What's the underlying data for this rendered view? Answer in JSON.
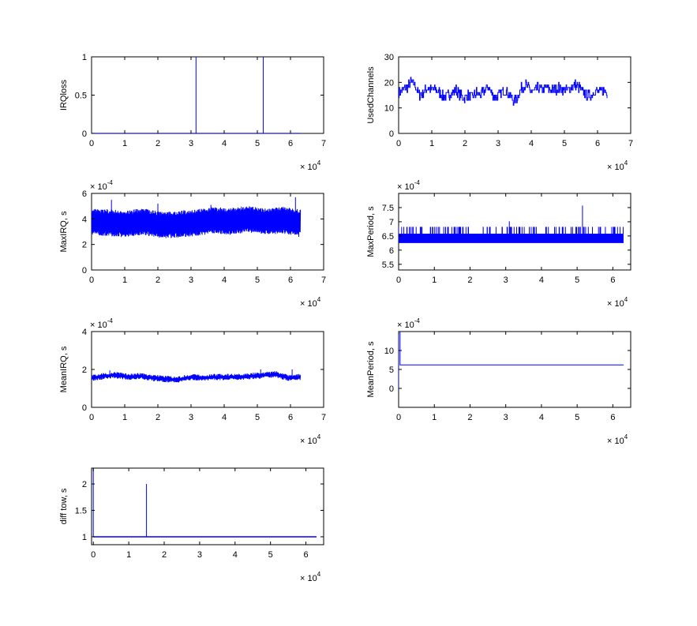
{
  "figure": {
    "background": "#ffffff",
    "axis_color": "#000000",
    "line_color": "#0000ff",
    "exponent_base": "× 10"
  },
  "chart_data": [
    {
      "id": "irqloss",
      "type": "line",
      "ylabel": "IRQloss",
      "xlim": [
        0,
        70000
      ],
      "ylim": [
        0,
        1
      ],
      "xticks": [
        0,
        1,
        2,
        3,
        4,
        5,
        6,
        7
      ],
      "yticks": [
        "0",
        "0.5",
        "1"
      ],
      "x_exponent": "4",
      "y_exponent": "",
      "baseline": 0,
      "events": [
        {
          "x": 31500,
          "y": 1
        },
        {
          "x": 51800,
          "y": 1
        }
      ],
      "x_end": 63000
    },
    {
      "id": "usedchannels",
      "type": "line",
      "ylabel": "UsedChannels",
      "xlim": [
        0,
        70000
      ],
      "ylim": [
        0,
        30
      ],
      "xticks": [
        0,
        1,
        2,
        3,
        4,
        5,
        6,
        7
      ],
      "yticks": [
        "0",
        "10",
        "20",
        "30"
      ],
      "x_exponent": "4",
      "y_exponent": "",
      "x_end": 63000,
      "values": [
        16,
        17,
        18,
        20,
        19,
        15,
        16,
        18,
        17,
        17,
        16,
        14,
        15,
        16,
        17,
        15,
        14,
        15,
        14,
        16,
        15,
        17,
        18,
        15,
        14,
        16,
        17,
        15,
        13,
        14,
        18,
        19,
        17,
        16,
        18,
        17,
        18,
        17,
        17,
        18,
        17,
        17,
        18,
        19,
        18,
        16,
        15,
        15,
        17,
        16,
        17,
        16
      ]
    },
    {
      "id": "maxirq",
      "type": "line",
      "ylabel": "MaxIRQ, s",
      "xlim": [
        0,
        70000
      ],
      "ylim": [
        0,
        6
      ],
      "xticks": [
        0,
        1,
        2,
        3,
        4,
        5,
        6,
        7
      ],
      "yticks": [
        "0",
        "2",
        "4",
        "6"
      ],
      "x_exponent": "4",
      "y_exponent": "-4",
      "x_end": 63000,
      "band": {
        "low": 3.0,
        "high": 4.4
      },
      "band_curve": [
        0.1,
        0.0,
        -0.1,
        0.1,
        -0.2,
        -0.1,
        0.0,
        0.2,
        0.1,
        0.3,
        0.1,
        0.2,
        0.0
      ],
      "spikes": [
        {
          "x": 6000,
          "y": 5.5
        },
        {
          "x": 20000,
          "y": 5.2
        },
        {
          "x": 36000,
          "y": 5.1
        },
        {
          "x": 61500,
          "y": 5.7
        },
        {
          "x": 62500,
          "y": 2.6
        },
        {
          "x": 24000,
          "y": 2.5
        }
      ]
    },
    {
      "id": "maxperiod",
      "type": "line",
      "ylabel": "MaxPeriod, s",
      "xlim": [
        0,
        65000
      ],
      "ylim": [
        5.3,
        8.0
      ],
      "xticks": [
        0,
        1,
        2,
        3,
        4,
        5,
        6
      ],
      "yticks": [
        "5.5",
        "6",
        "6.5",
        "7",
        "7.5"
      ],
      "x_exponent": "4",
      "y_exponent": "-4",
      "x_end": 63000,
      "band": {
        "low": 6.25,
        "high": 6.58
      },
      "spike_level": 6.82,
      "spikes": [
        {
          "x": 31000,
          "y": 7.02
        },
        {
          "x": 51500,
          "y": 7.57
        }
      ]
    },
    {
      "id": "meanirq",
      "type": "line",
      "ylabel": "MeanIRQ, s",
      "xlim": [
        0,
        70000
      ],
      "ylim": [
        0,
        4
      ],
      "xticks": [
        0,
        1,
        2,
        3,
        4,
        5,
        6,
        7
      ],
      "yticks": [
        "0",
        "2",
        "4"
      ],
      "x_exponent": "4",
      "y_exponent": "-4",
      "x_end": 63000,
      "mean_curve": [
        1.55,
        1.65,
        1.7,
        1.6,
        1.65,
        1.55,
        1.5,
        1.45,
        1.6,
        1.55,
        1.6,
        1.6,
        1.6,
        1.65,
        1.7,
        1.75,
        1.55,
        1.6
      ],
      "spikes": [
        {
          "x": 5500,
          "y": 1.95
        },
        {
          "x": 51000,
          "y": 2.0
        },
        {
          "x": 60500,
          "y": 2.0
        }
      ]
    },
    {
      "id": "meanperiod",
      "type": "line",
      "ylabel": "MeanPeriod, s",
      "xlim": [
        0,
        65000
      ],
      "ylim": [
        -5,
        15
      ],
      "xticks": [
        0,
        1,
        2,
        3,
        4,
        5,
        6
      ],
      "yticks": [
        "0",
        "5",
        "10"
      ],
      "x_exponent": "4",
      "y_exponent": "-4",
      "x_end": 63000,
      "segments": [
        [
          {
            "x": 0,
            "y": 0
          },
          {
            "x": 0,
            "y": 15
          },
          {
            "x": 400,
            "y": 15
          },
          {
            "x": 400,
            "y": 6.2
          },
          {
            "x": 63000,
            "y": 6.2
          }
        ]
      ]
    },
    {
      "id": "difftow",
      "type": "line",
      "ylabel": "diff tow, s",
      "xlim": [
        -500,
        65000
      ],
      "ylim": [
        0.85,
        2.3
      ],
      "xticks": [
        0,
        1,
        2,
        3,
        4,
        5,
        6
      ],
      "yticks": [
        "1",
        "1.5",
        "2"
      ],
      "x_exponent": "4",
      "y_exponent": "",
      "x_end": 63000,
      "baseline": 1,
      "segments": [
        [
          {
            "x": 0,
            "y": 1
          },
          {
            "x": 0,
            "y": 2.3
          }
        ],
        [
          {
            "x": 15000,
            "y": 1
          },
          {
            "x": 15000,
            "y": 2.0
          }
        ]
      ]
    }
  ]
}
